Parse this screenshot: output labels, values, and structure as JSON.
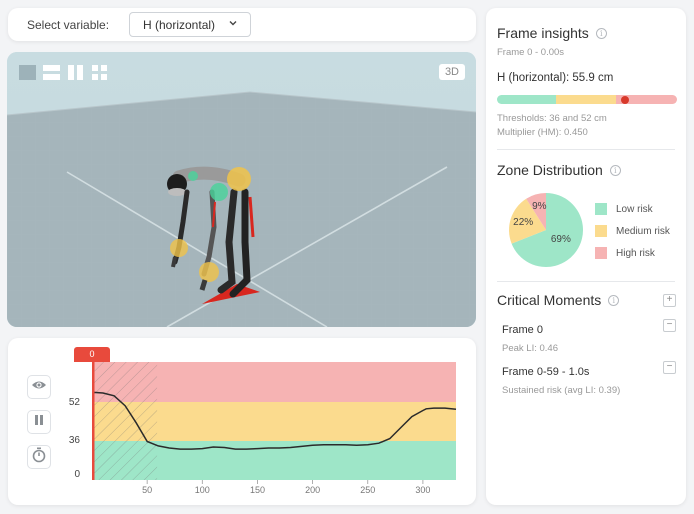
{
  "toolbar": {
    "select_label": "Select variable:",
    "selected_variable": "H (horizontal)",
    "chevron_icon": "chevron-down-icon"
  },
  "viewport": {
    "mode_badge": "3D",
    "tools": [
      {
        "name": "single-view-icon"
      },
      {
        "name": "horizontal-split-icon"
      },
      {
        "name": "vertical-split-icon"
      },
      {
        "name": "quad-view-icon"
      }
    ]
  },
  "timeline": {
    "current_frame_label": "0",
    "controls": [
      {
        "name": "visibility-button",
        "icon": "eye-icon"
      },
      {
        "name": "pause-button",
        "icon": "pause-icon"
      },
      {
        "name": "timer-button",
        "icon": "stopwatch-icon"
      }
    ],
    "colors": {
      "low": "#9ee6c8",
      "medium": "#fbdb8e",
      "high": "#f6b3b3",
      "cursor": "#e84a3c",
      "line": "#2b2b2b"
    }
  },
  "chart_data": {
    "type": "line",
    "title": "",
    "xlabel": "",
    "ylabel": "",
    "x_ticks": [
      50,
      100,
      150,
      200,
      250,
      300
    ],
    "y_ticks": [
      0,
      36,
      52
    ],
    "xlim": [
      0,
      330
    ],
    "bands": [
      {
        "name": "Low risk",
        "from": 0,
        "to": 36,
        "color": "#9ee6c8"
      },
      {
        "name": "Medium risk",
        "from": 36,
        "to": 52,
        "color": "#fbdb8e"
      },
      {
        "name": "High risk",
        "from": 52,
        "to": 68,
        "color": "#f6b3b3"
      }
    ],
    "highlighted_range": [
      0,
      59
    ],
    "cursor_frame": 0,
    "series": [
      {
        "name": "H (horizontal)",
        "x": [
          0,
          10,
          20,
          30,
          40,
          50,
          60,
          70,
          80,
          90,
          100,
          110,
          120,
          130,
          140,
          150,
          160,
          170,
          180,
          190,
          200,
          210,
          220,
          230,
          240,
          250,
          260,
          270,
          280,
          290,
          300,
          303,
          310,
          320,
          330
        ],
        "values": [
          55.9,
          55.6,
          54.5,
          50.5,
          43.5,
          35.5,
          31.5,
          29.5,
          28.5,
          28.5,
          29.0,
          30.5,
          30.0,
          28.5,
          28.5,
          29.0,
          29.5,
          29.5,
          30.0,
          31.0,
          32.0,
          32.5,
          32.5,
          32.5,
          32.0,
          32.5,
          34.0,
          37.0,
          41.5,
          46.0,
          48.5,
          49.2,
          49.5,
          49.5,
          49.0
        ]
      }
    ]
  },
  "panel": {
    "frame_insights": {
      "title": "Frame insights",
      "frame_time": "Frame 0 - 0.00s",
      "value_line": "H (horizontal): 55.9 cm",
      "thresholds": "Thresholds: 36 and 52 cm",
      "multiplier": "Multiplier (HM): 0.450",
      "gauge_position_pct": 71
    },
    "zone_distribution": {
      "title": "Zone Distribution",
      "slices": [
        {
          "label": "Low risk",
          "pct": 69,
          "pct_label": "69%",
          "color": "#9ee6c8"
        },
        {
          "label": "Medium risk",
          "pct": 22,
          "pct_label": "22%",
          "color": "#fbdb8e"
        },
        {
          "label": "High risk",
          "pct": 9,
          "pct_label": "9%",
          "color": "#f6b3b3"
        }
      ]
    },
    "critical_moments": {
      "title": "Critical Moments",
      "add_label": "+",
      "items": [
        {
          "title": "Frame 0",
          "detail": "Peak LI: 0.46",
          "remove_label": "−"
        },
        {
          "title": "Frame 0-59 - 1.0s",
          "detail": "Sustained risk (avg LI: 0.39)",
          "remove_label": "−"
        }
      ]
    },
    "info_glyph": "i"
  }
}
